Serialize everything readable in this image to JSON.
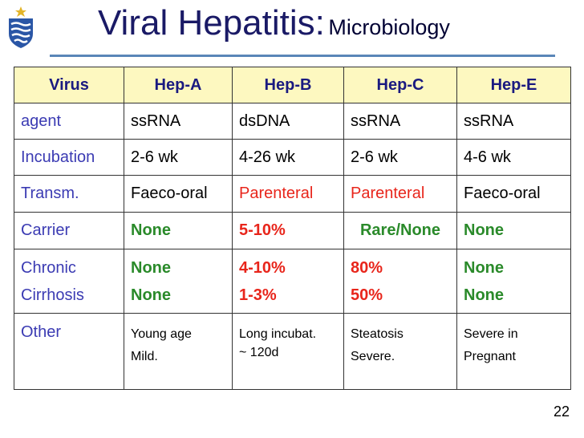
{
  "title": {
    "main": "Viral Hepatitis:",
    "sub": "Microbiology"
  },
  "table": {
    "headers": [
      "Virus",
      "Hep-A",
      "Hep-B",
      "Hep-C",
      "Hep-E"
    ],
    "agent": {
      "label": "agent",
      "values": [
        "ssRNA",
        "dsDNA",
        "ssRNA",
        "ssRNA"
      ]
    },
    "incubation": {
      "label": "Incubation",
      "values": [
        "2-6 wk",
        "4-26 wk",
        "2-6 wk",
        "4-6 wk"
      ]
    },
    "transm": {
      "label": "Transm.",
      "values": [
        "Faeco-oral",
        "Parenteral",
        "Parenteral",
        "Faeco-oral"
      ]
    },
    "carrier": {
      "label": "Carrier",
      "values": [
        "None",
        "5-10%",
        "Rare/None",
        "None"
      ]
    },
    "chronic": {
      "label": "Chronic",
      "values": [
        "None",
        "4-10%",
        "80%",
        "None"
      ]
    },
    "cirrhosis": {
      "label": "Cirrhosis",
      "values": [
        "None",
        "1-3%",
        "50%",
        "None"
      ]
    },
    "other": {
      "label": "Other",
      "values": [
        [
          "Young age",
          "Mild."
        ],
        [
          "Long incubat.",
          "~ 120d"
        ],
        [
          "Steatosis",
          "Severe."
        ],
        [
          "Severe in",
          "Pregnant"
        ]
      ]
    }
  },
  "page_number": "22",
  "colors": {
    "header_bg": "#fdf8c0",
    "label": "#3b3bb3",
    "red": "#e8251b",
    "green": "#2a8a2a",
    "title": "#1a1a66"
  },
  "icons": {
    "logo": "university-shield-logo"
  }
}
